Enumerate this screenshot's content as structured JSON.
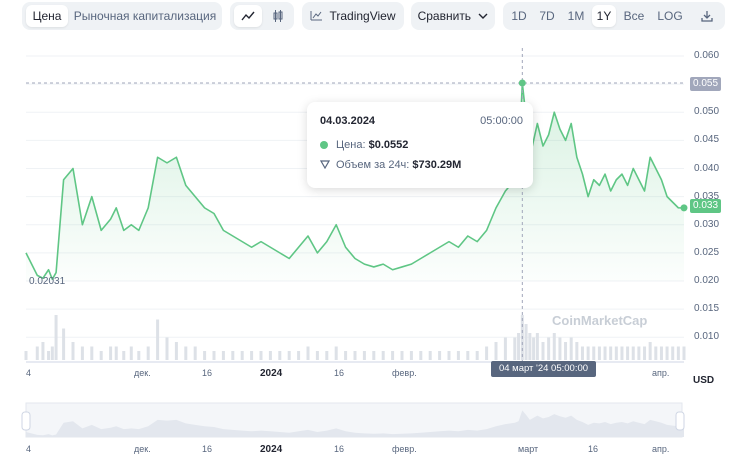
{
  "toolbar": {
    "tabs": [
      {
        "label": "Цена"
      },
      {
        "label": "Рыночная капитализация"
      }
    ],
    "tradingview_label": "TradingView",
    "compare_label": "Сравнить",
    "ranges": [
      "1D",
      "7D",
      "1M",
      "1Y",
      "Все"
    ],
    "log_label": "LOG",
    "icons": [
      "line-chart-icon",
      "candlestick-icon",
      "tradingview-icon",
      "chevron-down-icon",
      "download-icon"
    ]
  },
  "tooltip": {
    "date": "04.03.2024",
    "time": "05:00:00",
    "price_label": "Цена:",
    "price_value": "$0.0552",
    "volume_label": "Объем за 24ч:",
    "volume_value": "$730.29M"
  },
  "crosshair_label": "04 март '24   05:00:00",
  "min_label": "0.02031",
  "watermark": "CoinMarketCap",
  "currency": "USD",
  "colors": {
    "line": "#5fc685",
    "fill": "#e7f7ed",
    "badge_hover": "#a1a7bb",
    "badge_current": "#5fc685"
  },
  "chart_data": {
    "type": "area",
    "y_ticks": [
      "0.060",
      "0.055",
      "0.050",
      "0.045",
      "0.040",
      "0.035",
      "0.030",
      "0.025",
      "0.020",
      "0.015",
      "0.010"
    ],
    "ylim": [
      0.01,
      0.06
    ],
    "hover_value_label": "0.055",
    "current_value_label": "0.033",
    "x_tick_labels": [
      "4",
      "дек.",
      "16",
      "2024",
      "16",
      "февр.",
      "апр."
    ],
    "navigator_x_labels": [
      "4",
      "дек.",
      "16",
      "2024",
      "16",
      "февр.",
      "март",
      "16",
      "апр."
    ],
    "x": [
      0,
      6,
      9,
      12,
      14,
      16,
      20,
      25,
      30,
      35,
      40,
      45,
      48,
      52,
      56,
      60,
      65,
      70,
      75,
      80,
      85,
      90,
      95,
      100,
      105,
      110,
      115,
      120,
      125,
      130,
      135,
      140,
      145,
      150,
      155,
      160,
      165,
      170,
      175,
      180,
      185,
      190,
      195,
      200,
      205,
      210,
      215,
      220,
      225,
      230,
      235,
      240,
      245,
      250,
      255,
      260,
      262,
      264,
      266,
      268,
      270,
      272,
      275,
      278,
      281,
      284,
      287,
      290,
      293,
      296,
      299,
      302,
      305,
      308,
      311,
      314,
      317,
      320,
      323,
      326,
      329,
      332,
      335,
      338,
      341,
      344,
      347,
      350
    ],
    "y": [
      0.025,
      0.021,
      0.0205,
      0.022,
      0.0203,
      0.0215,
      0.038,
      0.04,
      0.03,
      0.035,
      0.029,
      0.031,
      0.033,
      0.029,
      0.03,
      0.029,
      0.033,
      0.042,
      0.041,
      0.042,
      0.037,
      0.035,
      0.033,
      0.032,
      0.029,
      0.028,
      0.027,
      0.026,
      0.027,
      0.026,
      0.025,
      0.024,
      0.026,
      0.028,
      0.025,
      0.027,
      0.03,
      0.026,
      0.024,
      0.023,
      0.0225,
      0.023,
      0.022,
      0.0225,
      0.023,
      0.024,
      0.025,
      0.026,
      0.027,
      0.026,
      0.028,
      0.027,
      0.029,
      0.033,
      0.036,
      0.038,
      0.04,
      0.0552,
      0.049,
      0.042,
      0.045,
      0.048,
      0.044,
      0.046,
      0.05,
      0.047,
      0.045,
      0.048,
      0.042,
      0.039,
      0.035,
      0.038,
      0.037,
      0.039,
      0.036,
      0.038,
      0.039,
      0.037,
      0.04,
      0.038,
      0.036,
      0.042,
      0.04,
      0.038,
      0.035,
      0.034,
      0.033,
      0.033
    ],
    "volume": [
      0.2,
      0.3,
      0.4,
      0.2,
      0.3,
      1.0,
      0.7,
      0.4,
      0.3,
      0.3,
      0.2,
      0.3,
      0.3,
      0.2,
      0.3,
      0.2,
      0.3,
      0.9,
      0.5,
      0.4,
      0.3,
      0.3,
      0.2,
      0.2,
      0.2,
      0.2,
      0.2,
      0.2,
      0.2,
      0.2,
      0.2,
      0.2,
      0.2,
      0.3,
      0.2,
      0.2,
      0.3,
      0.2,
      0.2,
      0.2,
      0.2,
      0.2,
      0.2,
      0.2,
      0.2,
      0.2,
      0.2,
      0.2,
      0.2,
      0.2,
      0.2,
      0.2,
      0.3,
      0.4,
      0.5,
      0.5,
      0.6,
      1.0,
      0.8,
      0.6,
      0.5,
      0.6,
      0.4,
      0.5,
      0.6,
      0.5,
      0.4,
      0.5,
      0.4,
      0.3,
      0.3,
      0.3,
      0.3,
      0.3,
      0.3,
      0.3,
      0.3,
      0.3,
      0.3,
      0.3,
      0.3,
      0.4,
      0.3,
      0.3,
      0.3,
      0.3,
      0.3,
      0.3
    ]
  }
}
